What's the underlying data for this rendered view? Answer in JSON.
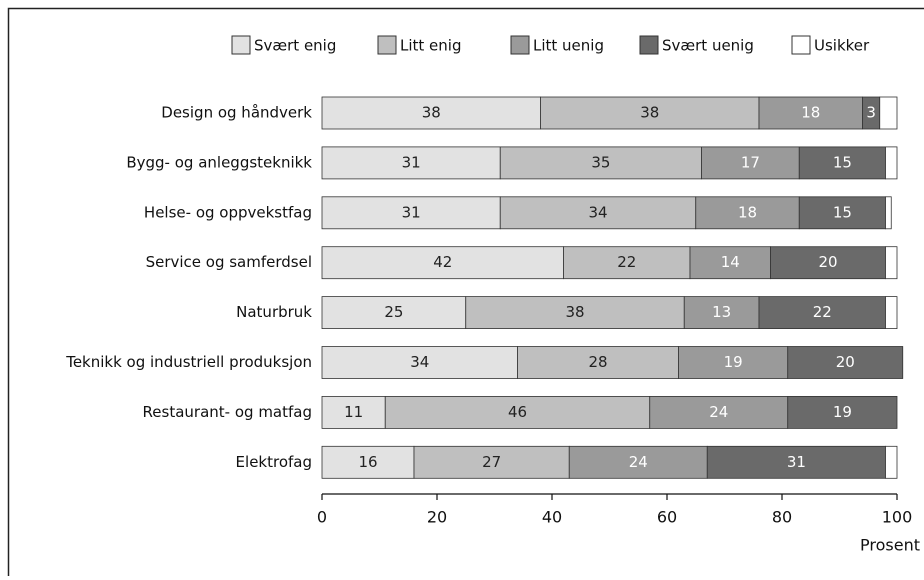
{
  "chart_data": {
    "type": "stacked_barh",
    "categories": [
      "Design og håndverk",
      "Bygg- og anleggsteknikk",
      "Helse- og oppvekstfag",
      "Service og samferdsel",
      "Naturbruk",
      "Teknikk og industriell produksjon",
      "Restaurant- og matfag",
      "Elektrofag"
    ],
    "series": [
      {
        "name": "Svært enig",
        "color": "#e2e2e2",
        "values": [
          38,
          31,
          31,
          42,
          25,
          34,
          11,
          16
        ]
      },
      {
        "name": "Litt enig",
        "color": "#bfbfbf",
        "values": [
          38,
          35,
          34,
          22,
          38,
          28,
          46,
          27
        ]
      },
      {
        "name": "Litt uenig",
        "color": "#9a9a9a",
        "values": [
          18,
          17,
          18,
          14,
          13,
          19,
          24,
          24
        ]
      },
      {
        "name": "Svært uenig",
        "color": "#6a6a6a",
        "values": [
          3,
          15,
          15,
          20,
          22,
          20,
          19,
          31
        ]
      },
      {
        "name": "Usikker",
        "color": "#ffffff",
        "values": [
          3,
          2,
          1,
          2,
          2,
          0,
          0,
          2
        ],
        "show_labels": false
      }
    ],
    "xlabel": "Prosent",
    "xlim": [
      0,
      100
    ],
    "xticks": [
      0,
      20,
      40,
      60,
      80,
      100
    ]
  }
}
